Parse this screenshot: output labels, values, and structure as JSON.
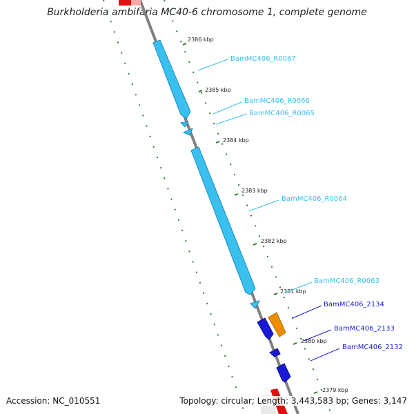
{
  "title": "Burkholderia ambifaria MC40-6 chromosome 1, complete genome",
  "footer": {
    "accession": "Accession: NC_010551",
    "summary": "Topology: circular; Length: 3,443,583 bp; Genes: 3,147"
  },
  "colors": {
    "backbone": "#808080",
    "ticks": "#2a7a2a",
    "rna_gene": "#39c0ee",
    "protein_gene": "#1a1ad6",
    "highlight_gene": "#f08c00",
    "marker": "#e01010"
  },
  "scale_labels": [
    "2386 kbp",
    "2385 kbp",
    "2384 kbp",
    "2383 kbp",
    "2382 kbp",
    "2381 kbp",
    "2380 kbp",
    "2379 kbp"
  ],
  "gene_labels": [
    "BamMC406_R0067",
    "BamMC406_R0066",
    "BamMC406_R0065",
    "BamMC406_R0064",
    "BamMC406_R0063",
    "BamMC406_2134",
    "BamMC406_2133",
    "BamMC406_2132"
  ]
}
